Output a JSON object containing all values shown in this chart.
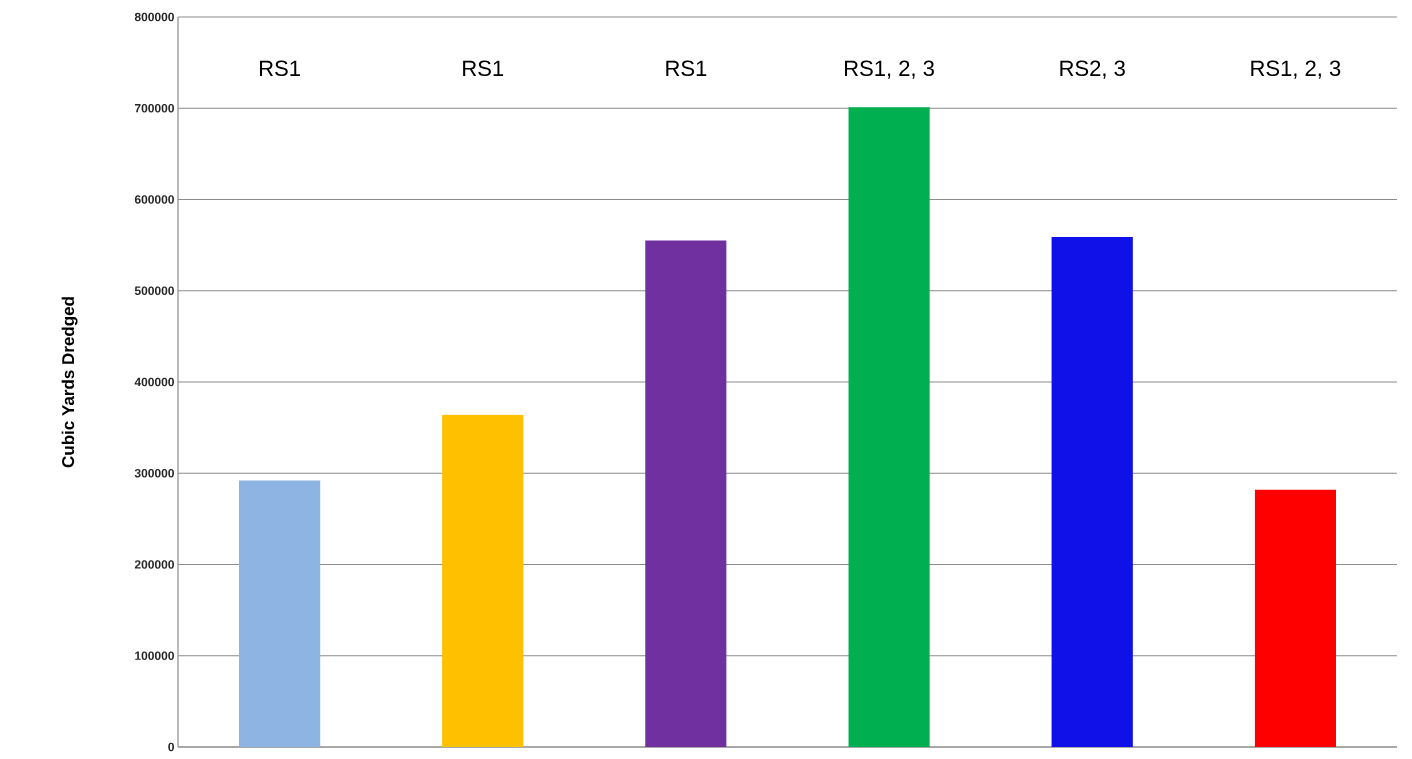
{
  "chart_data": {
    "type": "bar",
    "ylabel": "Cubic Yards Dredged",
    "categories": [
      "RS1",
      "RS1",
      "RS1",
      "RS1, 2, 3",
      "RS2, 3",
      "RS1, 2, 3"
    ],
    "values": [
      292000,
      364000,
      555000,
      701000,
      559000,
      282000
    ],
    "colors": [
      "#8eb4e3",
      "#ffc000",
      "#7030a0",
      "#00b050",
      "#1010e8",
      "#ff0000"
    ],
    "ylim": [
      0,
      800000
    ],
    "yticks": [
      0,
      100000,
      200000,
      300000,
      400000,
      500000,
      600000,
      700000,
      800000
    ],
    "grid": "y"
  }
}
